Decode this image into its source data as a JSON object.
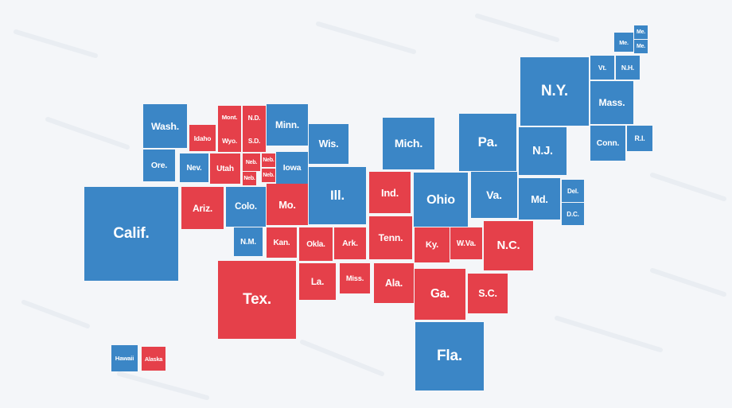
{
  "states": [
    {
      "label": "Me.",
      "color": "#3b86c6"
    },
    {
      "label": "Me.",
      "color": "#3b86c6"
    },
    {
      "label": "Me.",
      "color": "#3b86c6"
    },
    {
      "label": "Vt.",
      "color": "#3b86c6"
    },
    {
      "label": "N.H.",
      "color": "#3b86c6"
    },
    {
      "label": "N.Y.",
      "color": "#3b86c6"
    },
    {
      "label": "Mass.",
      "color": "#3b86c6"
    },
    {
      "label": "Conn.",
      "color": "#3b86c6"
    },
    {
      "label": "R.I.",
      "color": "#3b86c6"
    },
    {
      "label": "Pa.",
      "color": "#3b86c6"
    },
    {
      "label": "N.J.",
      "color": "#3b86c6"
    },
    {
      "label": "Mich.",
      "color": "#3b86c6"
    },
    {
      "label": "Wash.",
      "color": "#3b86c6"
    },
    {
      "label": "Mont.",
      "color": "#e5404a"
    },
    {
      "label": "N.D.",
      "color": "#e5404a"
    },
    {
      "label": "Minn.",
      "color": "#3b86c6"
    },
    {
      "label": "Idaho",
      "color": "#e5404a"
    },
    {
      "label": "Wyo.",
      "color": "#e5404a"
    },
    {
      "label": "S.D.",
      "color": "#e5404a"
    },
    {
      "label": "Wis.",
      "color": "#3b86c6"
    },
    {
      "label": "Neb.",
      "color": "#e5404a"
    },
    {
      "label": "Neb.",
      "color": "#e5404a"
    },
    {
      "label": "Neb.",
      "color": "#e5404a"
    },
    {
      "label": "Neb.",
      "color": "#e5404a"
    },
    {
      "label": "Ore.",
      "color": "#3b86c6"
    },
    {
      "label": "Nev.",
      "color": "#3b86c6"
    },
    {
      "label": "Utah",
      "color": "#e5404a"
    },
    {
      "label": "Iowa",
      "color": "#3b86c6"
    },
    {
      "label": "Ill.",
      "color": "#3b86c6"
    },
    {
      "label": "Ind.",
      "color": "#e5404a"
    },
    {
      "label": "Ohio",
      "color": "#3b86c6"
    },
    {
      "label": "Va.",
      "color": "#3b86c6"
    },
    {
      "label": "Md.",
      "color": "#3b86c6"
    },
    {
      "label": "Del.",
      "color": "#3b86c6"
    },
    {
      "label": "D.C.",
      "color": "#3b86c6"
    },
    {
      "label": "Calif.",
      "color": "#3b86c6"
    },
    {
      "label": "Ariz.",
      "color": "#e5404a"
    },
    {
      "label": "Colo.",
      "color": "#3b86c6"
    },
    {
      "label": "Mo.",
      "color": "#e5404a"
    },
    {
      "label": "N.M.",
      "color": "#3b86c6"
    },
    {
      "label": "Kan.",
      "color": "#e5404a"
    },
    {
      "label": "Okla.",
      "color": "#e5404a"
    },
    {
      "label": "Ark.",
      "color": "#e5404a"
    },
    {
      "label": "Tenn.",
      "color": "#e5404a"
    },
    {
      "label": "Ky.",
      "color": "#e5404a"
    },
    {
      "label": "W.Va.",
      "color": "#e5404a"
    },
    {
      "label": "N.C.",
      "color": "#e5404a"
    },
    {
      "label": "Tex.",
      "color": "#e5404a"
    },
    {
      "label": "La.",
      "color": "#e5404a"
    },
    {
      "label": "Miss.",
      "color": "#e5404a"
    },
    {
      "label": "Ala.",
      "color": "#e5404a"
    },
    {
      "label": "Ga.",
      "color": "#e5404a"
    },
    {
      "label": "S.C.",
      "color": "#e5404a"
    },
    {
      "label": "Fla.",
      "color": "#3b86c6"
    },
    {
      "label": "Hawaii",
      "color": "#3b86c6"
    },
    {
      "label": "Alaska",
      "color": "#e5404a"
    }
  ]
}
